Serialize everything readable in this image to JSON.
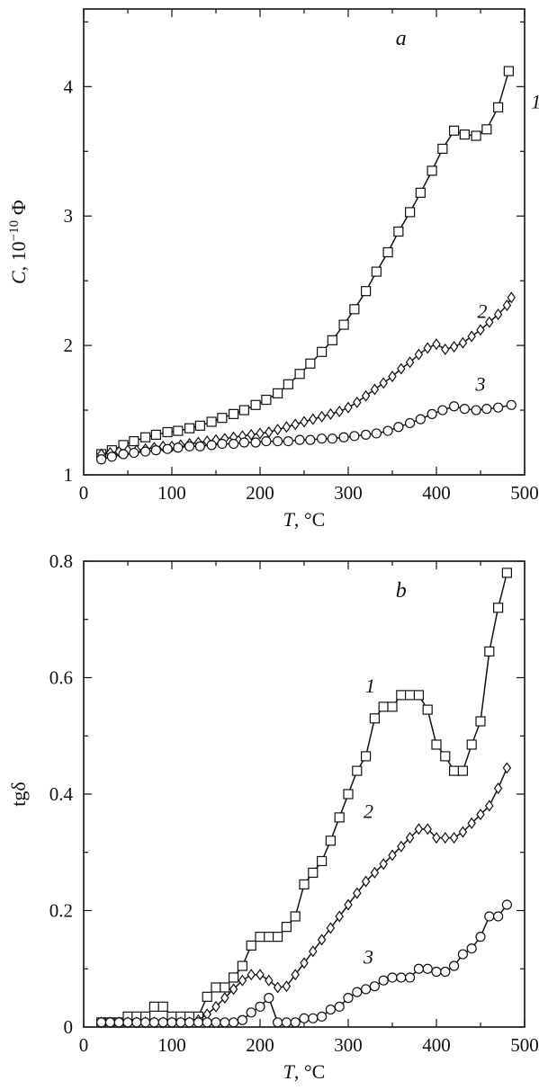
{
  "chart_data": [
    {
      "type": "line",
      "panel_label": "a",
      "xlabel_var": "T",
      "xlabel_unit": ", °C",
      "ylabel_var": "C",
      "ylabel_unit": ", 10",
      "ylabel_exp": "−10",
      "ylabel_unit2": " Ф",
      "xlim": [
        0,
        500
      ],
      "ylim": [
        1,
        4.6
      ],
      "xticks": [
        0,
        100,
        200,
        300,
        400,
        500
      ],
      "yticks": [
        1,
        2,
        3,
        4
      ],
      "grid": false,
      "series": [
        {
          "name": "1",
          "marker": "square",
          "label_at": [
            513,
            3.88
          ],
          "x": [
            20,
            32,
            45,
            57,
            70,
            82,
            95,
            107,
            120,
            132,
            145,
            157,
            170,
            182,
            195,
            207,
            220,
            232,
            245,
            257,
            270,
            282,
            295,
            307,
            320,
            332,
            345,
            357,
            370,
            382,
            395,
            407,
            420,
            432,
            445,
            457,
            470,
            482
          ],
          "y": [
            1.16,
            1.19,
            1.23,
            1.26,
            1.29,
            1.31,
            1.33,
            1.34,
            1.36,
            1.38,
            1.41,
            1.44,
            1.47,
            1.5,
            1.54,
            1.58,
            1.63,
            1.7,
            1.78,
            1.86,
            1.95,
            2.04,
            2.16,
            2.28,
            2.42,
            2.57,
            2.72,
            2.88,
            3.03,
            3.18,
            3.35,
            3.52,
            3.66,
            3.63,
            3.62,
            3.67,
            3.84,
            4.12
          ]
        },
        {
          "name": "2",
          "marker": "diamond",
          "label_at": [
            452,
            2.26
          ],
          "x": [
            20,
            30,
            40,
            50,
            60,
            70,
            80,
            90,
            100,
            110,
            120,
            130,
            140,
            150,
            160,
            170,
            180,
            190,
            200,
            210,
            220,
            230,
            240,
            250,
            260,
            270,
            280,
            290,
            300,
            310,
            320,
            330,
            340,
            350,
            360,
            370,
            380,
            390,
            400,
            410,
            420,
            430,
            440,
            450,
            460,
            470,
            480,
            485
          ],
          "y": [
            1.16,
            1.17,
            1.18,
            1.19,
            1.19,
            1.2,
            1.21,
            1.22,
            1.22,
            1.23,
            1.24,
            1.25,
            1.26,
            1.27,
            1.28,
            1.29,
            1.3,
            1.31,
            1.32,
            1.33,
            1.35,
            1.37,
            1.39,
            1.41,
            1.43,
            1.45,
            1.47,
            1.49,
            1.52,
            1.56,
            1.61,
            1.66,
            1.71,
            1.76,
            1.82,
            1.87,
            1.93,
            1.98,
            2.01,
            1.97,
            1.99,
            2.02,
            2.07,
            2.12,
            2.18,
            2.24,
            2.31,
            2.37
          ]
        },
        {
          "name": "3",
          "marker": "circle",
          "label_at": [
            450,
            1.7
          ],
          "x": [
            20,
            32,
            45,
            57,
            70,
            82,
            95,
            107,
            120,
            132,
            145,
            157,
            170,
            182,
            195,
            207,
            220,
            232,
            245,
            257,
            270,
            282,
            295,
            307,
            320,
            332,
            345,
            357,
            370,
            382,
            395,
            407,
            420,
            432,
            445,
            457,
            470,
            485
          ],
          "y": [
            1.12,
            1.14,
            1.16,
            1.17,
            1.18,
            1.19,
            1.2,
            1.21,
            1.22,
            1.22,
            1.23,
            1.24,
            1.24,
            1.25,
            1.25,
            1.26,
            1.26,
            1.26,
            1.27,
            1.27,
            1.28,
            1.28,
            1.29,
            1.3,
            1.31,
            1.32,
            1.34,
            1.37,
            1.4,
            1.43,
            1.47,
            1.5,
            1.53,
            1.51,
            1.5,
            1.51,
            1.52,
            1.54
          ]
        }
      ]
    },
    {
      "type": "line",
      "panel_label": "b",
      "xlabel_var": "T",
      "xlabel_unit": ", °C",
      "ylabel_var": "tgδ",
      "ylabel_unit": "",
      "xlim": [
        0,
        500
      ],
      "ylim": [
        0,
        0.8
      ],
      "xticks": [
        0,
        100,
        200,
        300,
        400,
        500
      ],
      "yticks": [
        0,
        0.2,
        0.4,
        0.6,
        0.8
      ],
      "ytick_labels": [
        "0",
        "0.2",
        "0.4",
        "0.6",
        "0.8"
      ],
      "grid": false,
      "series": [
        {
          "name": "1",
          "marker": "square",
          "label_at": [
            325,
            0.585
          ],
          "x": [
            20,
            30,
            40,
            50,
            60,
            70,
            80,
            90,
            100,
            110,
            120,
            130,
            140,
            150,
            160,
            170,
            180,
            190,
            200,
            210,
            220,
            230,
            240,
            250,
            260,
            270,
            280,
            290,
            300,
            310,
            320,
            330,
            340,
            350,
            360,
            370,
            380,
            390,
            400,
            410,
            420,
            430,
            440,
            450,
            460,
            470,
            480
          ],
          "y": [
            0.008,
            0.008,
            0.008,
            0.018,
            0.018,
            0.018,
            0.035,
            0.035,
            0.018,
            0.018,
            0.018,
            0.018,
            0.052,
            0.068,
            0.068,
            0.085,
            0.105,
            0.14,
            0.155,
            0.155,
            0.155,
            0.172,
            0.19,
            0.245,
            0.265,
            0.285,
            0.32,
            0.36,
            0.4,
            0.44,
            0.465,
            0.53,
            0.55,
            0.55,
            0.57,
            0.57,
            0.57,
            0.545,
            0.485,
            0.465,
            0.44,
            0.44,
            0.485,
            0.525,
            0.645,
            0.72,
            0.78
          ]
        },
        {
          "name": "2",
          "marker": "diamond",
          "label_at": [
            323,
            0.37
          ],
          "x": [
            20,
            30,
            40,
            50,
            60,
            70,
            80,
            90,
            100,
            110,
            120,
            130,
            140,
            150,
            160,
            170,
            180,
            190,
            200,
            210,
            220,
            230,
            240,
            250,
            260,
            270,
            280,
            290,
            300,
            310,
            320,
            330,
            340,
            350,
            360,
            370,
            380,
            390,
            400,
            410,
            420,
            430,
            440,
            450,
            460,
            470,
            480
          ],
          "y": [
            0.008,
            0.008,
            0.008,
            0.008,
            0.008,
            0.008,
            0.008,
            0.008,
            0.008,
            0.008,
            0.008,
            0.012,
            0.022,
            0.035,
            0.05,
            0.065,
            0.08,
            0.09,
            0.09,
            0.08,
            0.068,
            0.07,
            0.09,
            0.11,
            0.13,
            0.15,
            0.17,
            0.19,
            0.21,
            0.23,
            0.25,
            0.265,
            0.28,
            0.295,
            0.31,
            0.325,
            0.34,
            0.34,
            0.325,
            0.325,
            0.325,
            0.335,
            0.35,
            0.365,
            0.38,
            0.41,
            0.445
          ]
        },
        {
          "name": "3",
          "marker": "circle",
          "label_at": [
            323,
            0.12
          ],
          "x": [
            20,
            30,
            40,
            50,
            60,
            70,
            80,
            90,
            100,
            110,
            120,
            130,
            140,
            150,
            160,
            170,
            180,
            190,
            200,
            210,
            220,
            230,
            240,
            250,
            260,
            270,
            280,
            290,
            300,
            310,
            320,
            330,
            340,
            350,
            360,
            370,
            380,
            390,
            400,
            410,
            420,
            430,
            440,
            450,
            460,
            470,
            480
          ],
          "y": [
            0.008,
            0.008,
            0.008,
            0.008,
            0.008,
            0.008,
            0.008,
            0.008,
            0.008,
            0.008,
            0.008,
            0.008,
            0.008,
            0.008,
            0.008,
            0.008,
            0.012,
            0.025,
            0.035,
            0.05,
            0.008,
            0.008,
            0.008,
            0.015,
            0.015,
            0.018,
            0.03,
            0.035,
            0.05,
            0.06,
            0.065,
            0.07,
            0.08,
            0.085,
            0.085,
            0.085,
            0.1,
            0.1,
            0.095,
            0.095,
            0.105,
            0.125,
            0.135,
            0.155,
            0.19,
            0.19,
            0.21
          ]
        }
      ]
    }
  ]
}
